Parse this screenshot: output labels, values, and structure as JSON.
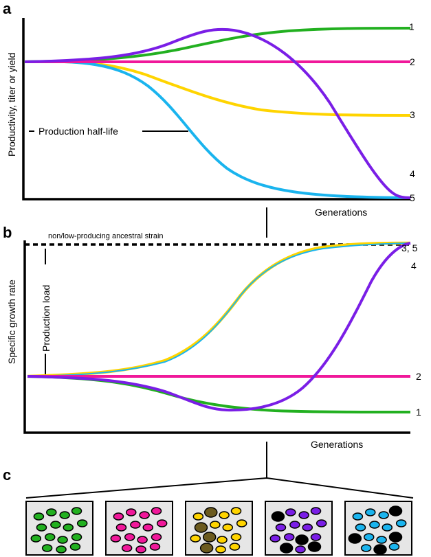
{
  "panels": {
    "a": {
      "letter": "a",
      "ylabel": "Productivity, titer or yield",
      "xlabel": "Generations",
      "annotation": "Production half-life",
      "curve_labels": [
        "1",
        "2",
        "3",
        "4",
        "5"
      ]
    },
    "b": {
      "letter": "b",
      "ylabel": "Specific growth rate",
      "xlabel": "Generations",
      "ancestral_label": "non/low-producing ancestral strain",
      "load_label": "Production load",
      "curve_labels": [
        "3, 5",
        "4",
        "2",
        "1"
      ]
    },
    "c": {
      "letter": "c",
      "boxes": [
        {
          "colors": [
            "green"
          ]
        },
        {
          "colors": [
            "pink"
          ]
        },
        {
          "colors": [
            "yellow",
            "olive"
          ]
        },
        {
          "colors": [
            "purple",
            "black"
          ]
        },
        {
          "colors": [
            "blue",
            "black"
          ]
        }
      ]
    }
  },
  "colors": {
    "green": "#22b020",
    "pink": "#f0189a",
    "yellow": "#ffd400",
    "purple": "#7a1ee6",
    "blue": "#1ab4ee",
    "olive": "#6b5a1e",
    "black": "#000000",
    "box_fill": "#e6e6e6"
  }
}
